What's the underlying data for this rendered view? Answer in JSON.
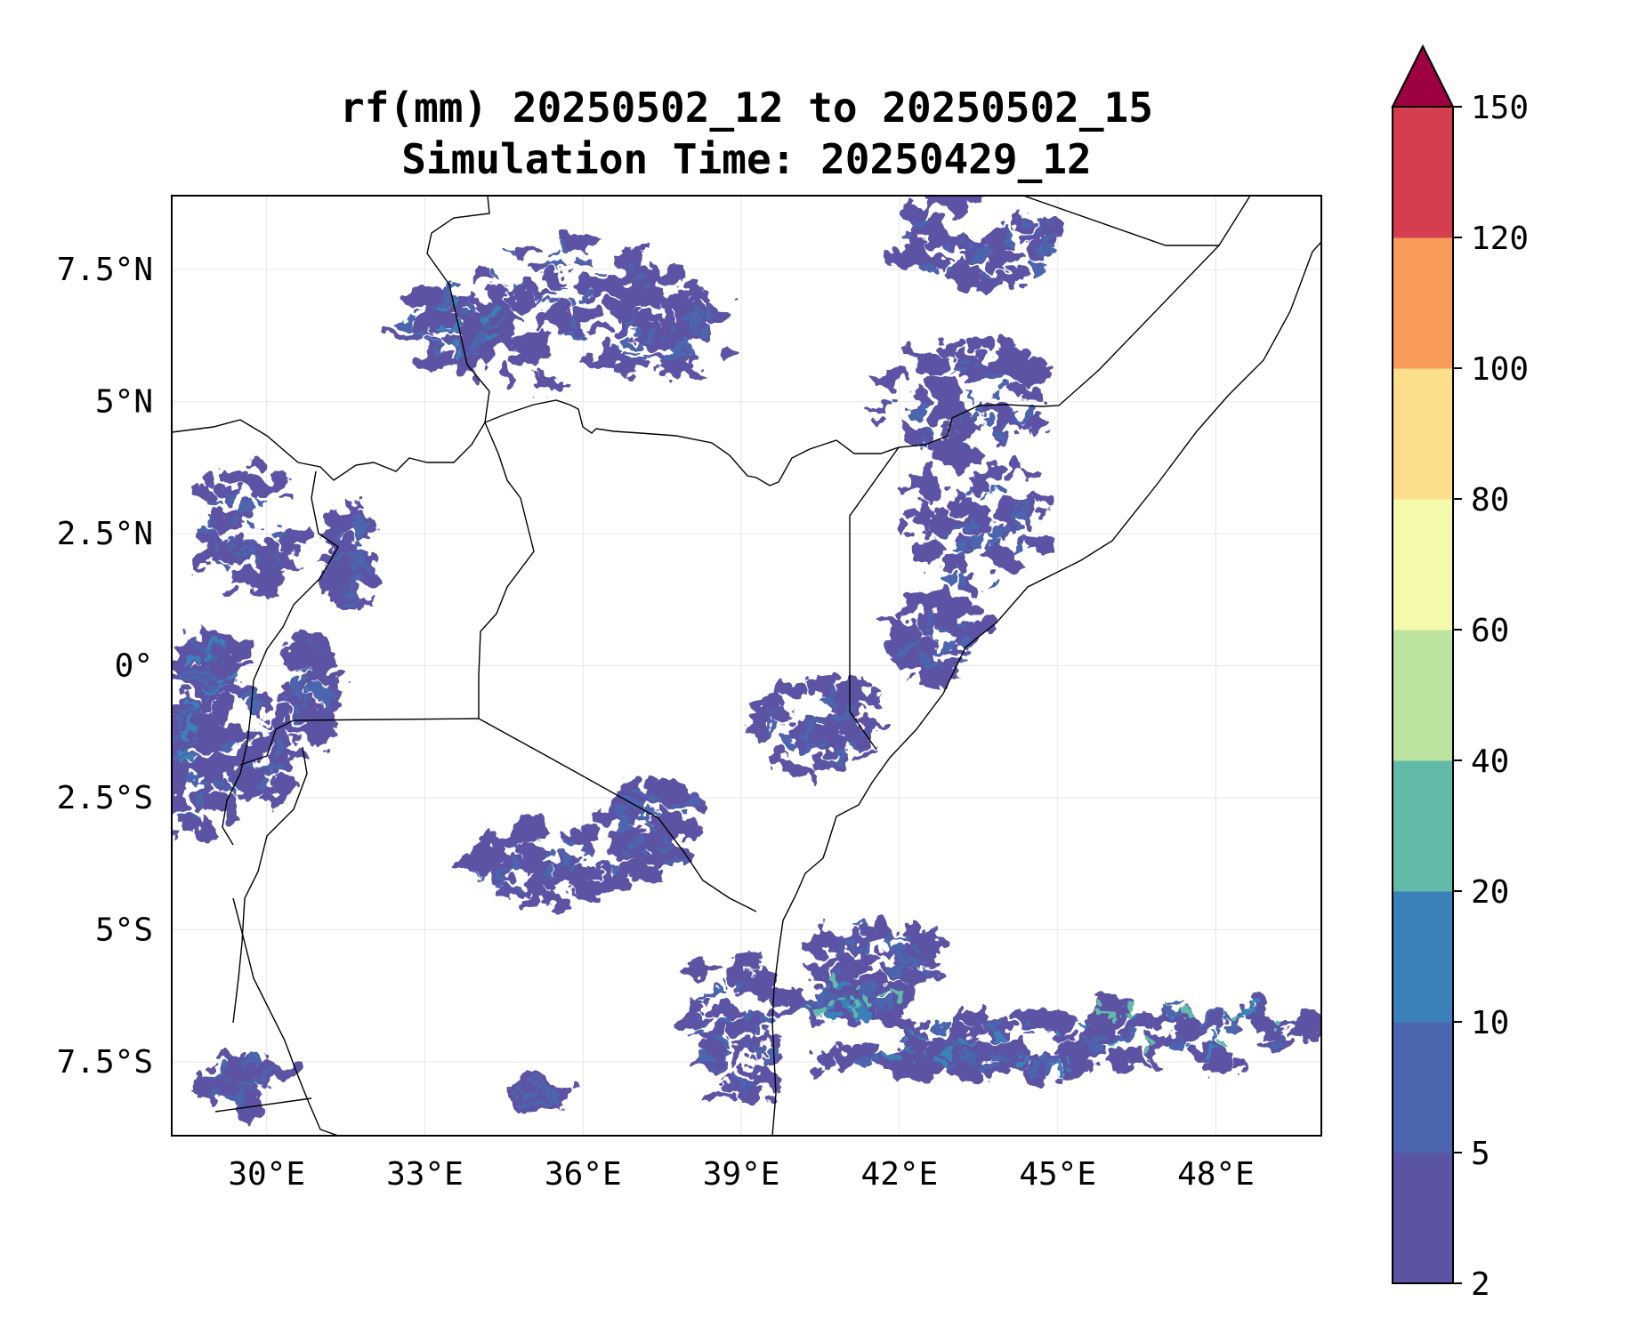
{
  "title": "rf(mm) 20250502_12 to 20250502_15",
  "subtitle": "Simulation Time: 20250429_12",
  "map": {
    "lon_range": [
      28.2,
      50.0
    ],
    "lat_range": [
      -8.9,
      8.9
    ],
    "lon_ticks": [
      {
        "value": 30,
        "label": "30°E"
      },
      {
        "value": 33,
        "label": "33°E"
      },
      {
        "value": 36,
        "label": "36°E"
      },
      {
        "value": 39,
        "label": "39°E"
      },
      {
        "value": 42,
        "label": "42°E"
      },
      {
        "value": 45,
        "label": "45°E"
      },
      {
        "value": 48,
        "label": "48°E"
      }
    ],
    "lat_ticks": [
      {
        "value": 7.5,
        "label": "7.5°N"
      },
      {
        "value": 5,
        "label": "5°N"
      },
      {
        "value": 2.5,
        "label": "2.5°N"
      },
      {
        "value": 0,
        "label": "0°"
      },
      {
        "value": -2.5,
        "label": "2.5°S"
      },
      {
        "value": -5,
        "label": "5°S"
      },
      {
        "value": -7.5,
        "label": "7.5°S"
      }
    ],
    "gridlines": true
  },
  "colorbar": {
    "levels": [
      {
        "value": 2,
        "label": "2"
      },
      {
        "value": 5,
        "label": "5"
      },
      {
        "value": 10,
        "label": "10"
      },
      {
        "value": 20,
        "label": "20"
      },
      {
        "value": 40,
        "label": "40"
      },
      {
        "value": 60,
        "label": "60"
      },
      {
        "value": 80,
        "label": "80"
      },
      {
        "value": 100,
        "label": "100"
      },
      {
        "value": 120,
        "label": "120"
      },
      {
        "value": 150,
        "label": "150"
      }
    ],
    "colors": [
      "#5b53a4",
      "#4b65ae",
      "#3b81b9",
      "#62bba9",
      "#bde3a0",
      "#f4f9ab",
      "#fddf8b",
      "#f99c5a",
      "#d53e4f"
    ],
    "extend_color": "#9e0142",
    "extend": "max"
  },
  "chart_data": {
    "type": "heatmap",
    "variable": "rf(mm)",
    "title": "rf(mm) 20250502_12 to 20250502_15",
    "subtitle": "Simulation Time: 20250429_12",
    "xlim": [
      28.2,
      50.0
    ],
    "ylim": [
      -8.9,
      8.9
    ],
    "rain_regions": [
      {
        "lon": 35.5,
        "lat": 6.7,
        "rlon": 2.5,
        "rlat": 1.6,
        "level": 1
      },
      {
        "lon": 33.5,
        "lat": 6.5,
        "rlon": 1.2,
        "rlat": 0.8,
        "level": 2
      },
      {
        "lon": 37.6,
        "lat": 6.3,
        "rlon": 1.3,
        "rlat": 0.9,
        "level": 1
      },
      {
        "lon": 43.5,
        "lat": 8.0,
        "rlon": 1.8,
        "rlat": 1.0,
        "level": 1
      },
      {
        "lon": 43.2,
        "lat": 5.0,
        "rlon": 1.8,
        "rlat": 1.2,
        "level": 1
      },
      {
        "lon": 43.5,
        "lat": 2.6,
        "rlon": 1.4,
        "rlat": 1.5,
        "level": 1
      },
      {
        "lon": 42.7,
        "lat": 0.6,
        "rlon": 0.9,
        "rlat": 0.8,
        "level": 1
      },
      {
        "lon": 29.6,
        "lat": 2.6,
        "rlon": 1.0,
        "rlat": 1.3,
        "level": 1
      },
      {
        "lon": 31.6,
        "lat": 2.0,
        "rlon": 0.4,
        "rlat": 1.0,
        "level": 1
      },
      {
        "lon": 28.9,
        "lat": 0.0,
        "rlon": 0.6,
        "rlat": 0.7,
        "level": 2
      },
      {
        "lon": 28.6,
        "lat": -1.8,
        "rlon": 0.5,
        "rlat": 1.5,
        "level": 2
      },
      {
        "lon": 29.6,
        "lat": -1.6,
        "rlon": 0.9,
        "rlat": 1.3,
        "level": 1
      },
      {
        "lon": 30.8,
        "lat": -0.4,
        "rlon": 0.5,
        "rlat": 1.0,
        "level": 1
      },
      {
        "lon": 40.4,
        "lat": -1.2,
        "rlon": 1.2,
        "rlat": 1.0,
        "level": 1
      },
      {
        "lon": 37.4,
        "lat": -3.0,
        "rlon": 1.0,
        "rlat": 1.0,
        "level": 1
      },
      {
        "lon": 35.3,
        "lat": -3.8,
        "rlon": 1.7,
        "rlat": 0.7,
        "level": 1
      },
      {
        "lon": 38.9,
        "lat": -6.9,
        "rlon": 1.0,
        "rlat": 1.6,
        "level": 1
      },
      {
        "lon": 41.5,
        "lat": -5.5,
        "rlon": 1.3,
        "rlat": 0.7,
        "level": 1
      },
      {
        "lon": 41.0,
        "lat": -6.3,
        "rlon": 1.2,
        "rlat": 0.5,
        "level": 3
      },
      {
        "lon": 44.0,
        "lat": -7.1,
        "rlon": 2.5,
        "rlat": 0.5,
        "level": 2
      },
      {
        "lon": 47.4,
        "lat": -6.9,
        "rlon": 2.6,
        "rlat": 0.7,
        "level": 3
      },
      {
        "lon": 43.3,
        "lat": -7.5,
        "rlon": 3.2,
        "rlat": 0.25,
        "level": 2
      },
      {
        "lon": 29.6,
        "lat": -7.9,
        "rlon": 0.9,
        "rlat": 0.5,
        "level": 1
      },
      {
        "lon": 35.2,
        "lat": -8.1,
        "rlon": 0.5,
        "rlat": 0.3,
        "level": 1
      }
    ]
  }
}
